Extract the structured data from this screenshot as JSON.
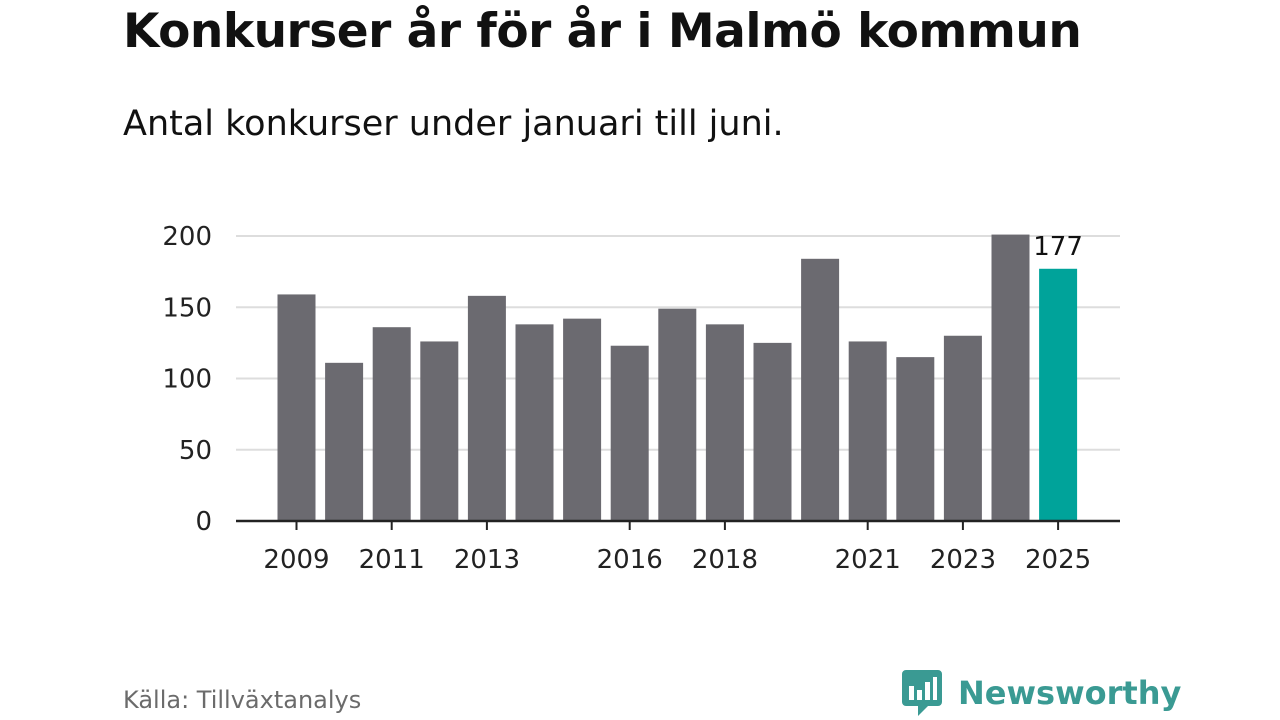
{
  "title": "Konkurser år för år i Malmö kommun",
  "subtitle": "Antal konkurser under januari till juni.",
  "source": "Källa: Tillväxtanalys",
  "brand": {
    "name": "Newsworthy",
    "logo_icon": "bar-chart-speech-bubble-icon",
    "color": "#3a9a93"
  },
  "colors": {
    "bar": "#6b6a70",
    "highlight": "#00a39a",
    "grid": "#dddddd",
    "axis": "#222222",
    "text": "#222222"
  },
  "chart_data": {
    "type": "bar",
    "categories": [
      "2009",
      "2010",
      "2011",
      "2012",
      "2013",
      "2014",
      "2015",
      "2016",
      "2017",
      "2018",
      "2019",
      "2020",
      "2021",
      "2022",
      "2023",
      "2024",
      "2025"
    ],
    "values": [
      159,
      111,
      136,
      126,
      158,
      138,
      142,
      123,
      149,
      138,
      125,
      184,
      126,
      115,
      130,
      201,
      177
    ],
    "highlight_category": "2025",
    "data_labels": [
      {
        "category": "2025",
        "text": "177"
      }
    ],
    "x_tick_labels": [
      "2009",
      "2011",
      "2013",
      "2016",
      "2018",
      "2021",
      "2023",
      "2025"
    ],
    "y_ticks": [
      0,
      50,
      100,
      150,
      200
    ],
    "ylim": [
      0,
      200
    ],
    "xlabel": "",
    "ylabel": "",
    "grid": true,
    "legend": "none"
  }
}
